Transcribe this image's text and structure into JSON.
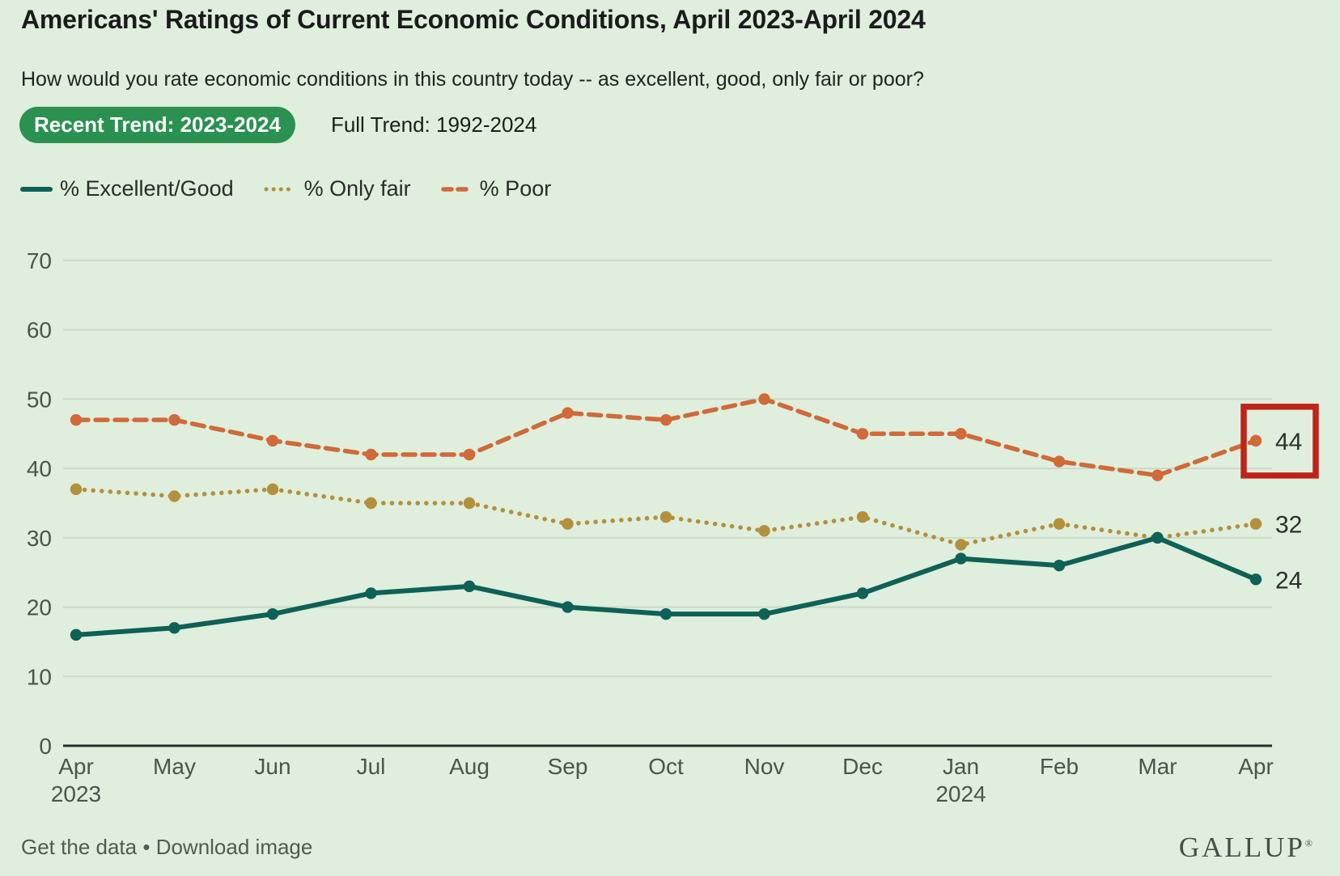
{
  "title": "Americans' Ratings of Current Economic Conditions, April 2023-April 2024",
  "subtitle": "How would you rate economic conditions in this country today -- as excellent, good, only fair or poor?",
  "tabs": [
    {
      "label": "Recent Trend: 2023-2024",
      "active": true
    },
    {
      "label": "Full Trend: 1992-2024",
      "active": false
    }
  ],
  "footer": {
    "link_get_data": "Get the data",
    "separator": "•",
    "link_download": "Download image",
    "brand": "GALLUP",
    "brand_mark": "®"
  },
  "colors": {
    "bg": "#dfeedd",
    "tab_active_bg": "#2a9150",
    "tab_active_text": "#ffffff",
    "grid": "#cbd9c8",
    "axis": "#26312a",
    "text_primary": "#1b1b1b",
    "text_secondary": "#4c544d",
    "value_label": "#2f2f2f",
    "annotation_red": "#c02317"
  },
  "chart_data": {
    "type": "line",
    "title": "Americans' Ratings of Current Economic Conditions, April 2023-April 2024",
    "x_labels": [
      "Apr",
      "May",
      "Jun",
      "Jul",
      "Aug",
      "Sep",
      "Oct",
      "Nov",
      "Dec",
      "Jan",
      "Feb",
      "Mar",
      "Apr"
    ],
    "x_sublabels": {
      "0": "2023",
      "9": "2024"
    },
    "series": [
      {
        "name": "% Excellent/Good",
        "color": "#0d6157",
        "style": "solid",
        "values": [
          16,
          17,
          19,
          22,
          23,
          20,
          19,
          19,
          22,
          27,
          26,
          30,
          24
        ]
      },
      {
        "name": "% Only fair",
        "color": "#b3903c",
        "style": "dotted",
        "values": [
          37,
          36,
          37,
          35,
          35,
          32,
          33,
          31,
          33,
          29,
          32,
          30,
          32
        ]
      },
      {
        "name": "% Poor",
        "color": "#d06a38",
        "style": "dashed",
        "values": [
          47,
          47,
          44,
          42,
          42,
          48,
          47,
          50,
          45,
          45,
          41,
          39,
          44
        ]
      }
    ],
    "end_labels": [
      24,
      32,
      44
    ],
    "yticks": [
      0,
      10,
      20,
      30,
      40,
      50,
      60,
      70
    ],
    "ylim": [
      0,
      75
    ],
    "grid": true,
    "legend_position": "top-left",
    "annotation": {
      "type": "box",
      "series": "% Poor",
      "point_index": 12,
      "value": 44,
      "color": "#c02317"
    }
  }
}
